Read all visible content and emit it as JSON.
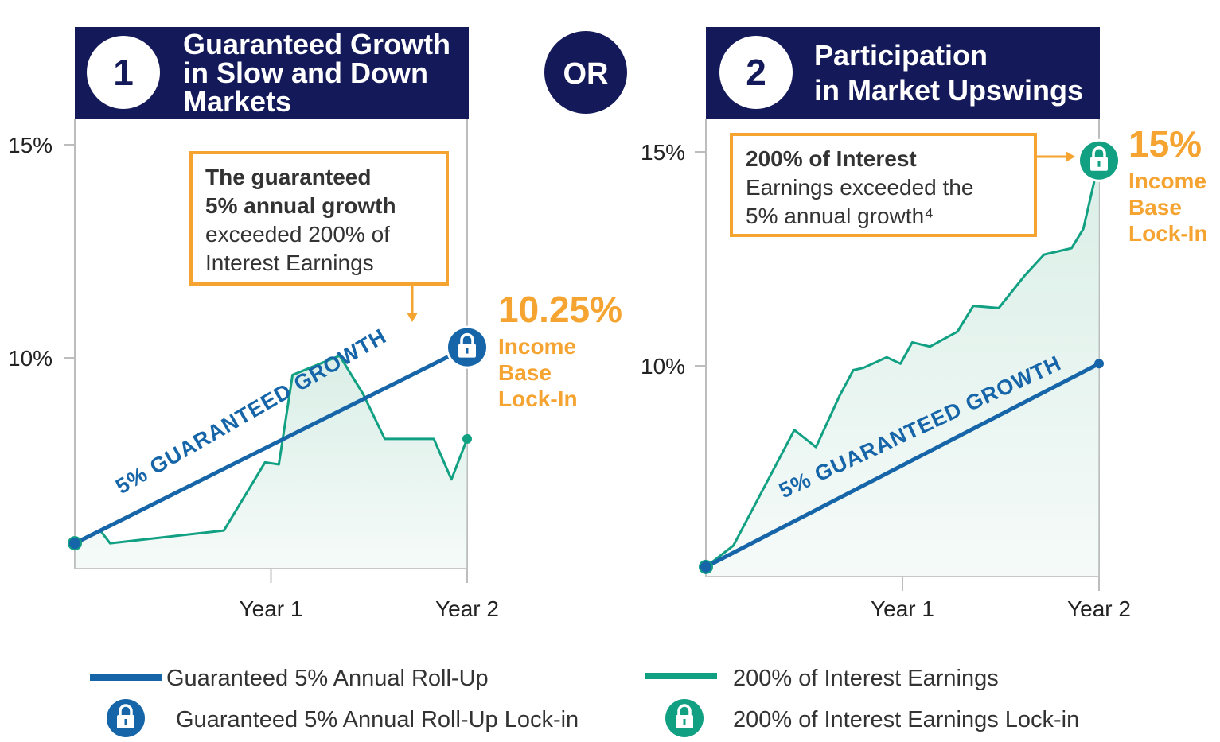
{
  "colors": {
    "navy": "#14195a",
    "blue": "#1565a8",
    "green": "#12a083",
    "green_fill": "#d8ede5",
    "orange": "#f5a431",
    "axis": "#bdbdbd"
  },
  "or_label": "OR",
  "panels": [
    {
      "number": "1",
      "title_lines": [
        "Guaranteed Growth",
        "in Slow and Down",
        "Markets"
      ],
      "callout_lines": [
        {
          "text": "The guaranteed",
          "bold": true
        },
        {
          "text": "5% annual growth",
          "bold": true
        },
        {
          "text": "exceeded 200% of",
          "bold": false
        },
        {
          "text": "Interest Earnings",
          "bold": false
        }
      ],
      "lock_value": "10.25%",
      "lock_label_lines": [
        "Income",
        "Base",
        "Lock-In"
      ],
      "line_label": "5% GUARANTEED GROWTH",
      "lock_icon": "blue-lock-icon"
    },
    {
      "number": "2",
      "title_lines": [
        "Participation",
        "in Market Upswings"
      ],
      "callout_lines": [
        {
          "text": "200% of Interest",
          "bold": true
        },
        {
          "text": "Earnings exceeded the",
          "bold": false
        },
        {
          "text": "5% annual growth⁴",
          "bold": false
        }
      ],
      "lock_value": "15%",
      "lock_label_lines": [
        "Income",
        "Base",
        "Lock-In"
      ],
      "line_label": "5% GUARANTEED GROWTH",
      "lock_icon": "green-lock-icon"
    }
  ],
  "legend": [
    {
      "label": "Guaranteed 5% Annual Roll-Up",
      "marker": "blue-line",
      "color": "#1565a8"
    },
    {
      "label": "200% of Interest Earnings",
      "marker": "green-line",
      "color": "#12a083"
    },
    {
      "label": "Guaranteed 5% Annual Roll-Up Lock-in",
      "marker": "blue-lock-icon",
      "color": "#1565a8"
    },
    {
      "label": "200% of Interest Earnings Lock-in",
      "marker": "green-lock-icon",
      "color": "#12a083"
    }
  ],
  "chart_data": [
    {
      "type": "line",
      "title": "Guaranteed Growth in Slow and Down Markets",
      "x_ticks": [
        {
          "value": 1,
          "label": "Year 1"
        },
        {
          "value": 2,
          "label": "Year 2"
        }
      ],
      "y_ticks": [
        {
          "value": 10,
          "label": "10%"
        },
        {
          "value": 15,
          "label": "15%"
        }
      ],
      "xlim": [
        0,
        2
      ],
      "ylim": [
        5,
        15.2
      ],
      "series": [
        {
          "name": "Guaranteed 5% Annual Roll-Up",
          "color": "#1565a8",
          "x": [
            0,
            2
          ],
          "y": [
            5.65,
            10.25
          ],
          "end_marker": "lock"
        },
        {
          "name": "200% of Interest Earnings",
          "color": "#12a083",
          "fill": true,
          "x": [
            0,
            0.13,
            0.18,
            0.76,
            0.97,
            1.04,
            1.11,
            1.35,
            1.47,
            1.58,
            1.64,
            1.83,
            1.92,
            2.0
          ],
          "y": [
            5.65,
            5.95,
            5.65,
            5.95,
            7.55,
            7.5,
            9.6,
            10.05,
            9.15,
            8.1,
            8.1,
            8.1,
            7.15,
            8.1
          ],
          "end_marker": "dot"
        }
      ]
    },
    {
      "type": "line",
      "title": "Participation in Market Upswings",
      "x_ticks": [
        {
          "value": 1,
          "label": "Year 1"
        },
        {
          "value": 2,
          "label": "Year 2"
        }
      ],
      "y_ticks": [
        {
          "value": 10,
          "label": "10%"
        },
        {
          "value": 15,
          "label": "15%"
        }
      ],
      "xlim": [
        0,
        2
      ],
      "ylim": [
        5,
        15.2
      ],
      "series": [
        {
          "name": "Guaranteed 5% Annual Roll-Up",
          "color": "#1565a8",
          "x": [
            0,
            2
          ],
          "y": [
            5.3,
            10.05
          ],
          "end_marker": "dot"
        },
        {
          "name": "200% of Interest Earnings",
          "color": "#12a083",
          "fill": true,
          "x": [
            0,
            0.14,
            0.45,
            0.56,
            0.68,
            0.75,
            0.8,
            0.92,
            0.99,
            1.05,
            1.14,
            1.28,
            1.36,
            1.49,
            1.62,
            1.72,
            1.86,
            1.92,
            2.0
          ],
          "y": [
            5.3,
            5.8,
            8.5,
            8.1,
            9.3,
            9.9,
            9.95,
            10.2,
            10.05,
            10.55,
            10.45,
            10.8,
            11.4,
            11.35,
            12.1,
            12.6,
            12.75,
            13.2,
            14.8
          ],
          "end_marker": "lock"
        }
      ]
    }
  ]
}
